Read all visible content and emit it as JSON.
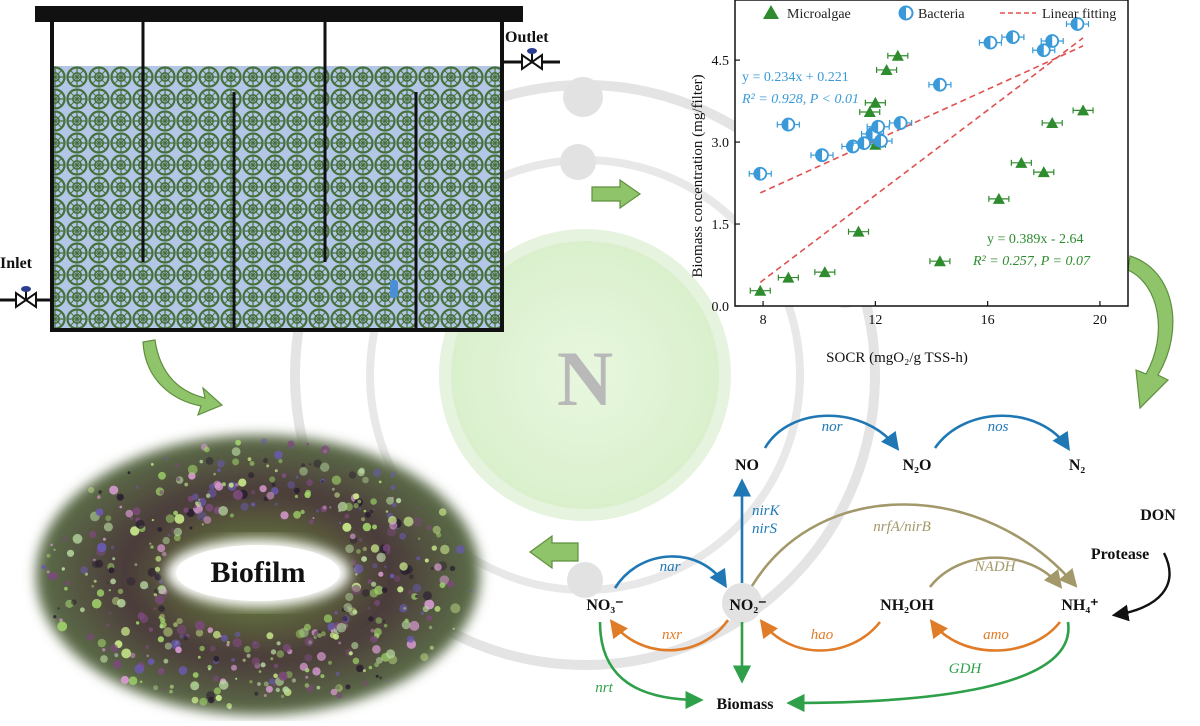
{
  "reactor": {
    "inlet_label": "Inlet",
    "outlet_label": "Outlet"
  },
  "center_label": "N",
  "biofilm_label": "Biofilm",
  "colors": {
    "blue": "#1f78b4",
    "orange": "#e07b28",
    "green": "#2ea04a",
    "khaki": "#a3986a",
    "microalgae": "#2e8b2e",
    "bacteria": "#3a9ad9",
    "fit": "#e05050",
    "arrow_fill": "#8fc46b"
  },
  "chart_data": {
    "type": "scatter",
    "xlabel": "SOCR (mgO₂/g TSS-h)",
    "ylabel": "Biomass concentration (mg/filter)",
    "xlim": [
      7,
      21
    ],
    "ylim": [
      0,
      5.6
    ],
    "xticks": [
      "8",
      "12",
      "16",
      "20"
    ],
    "yticks": [
      "0.0",
      "1.5",
      "3.0",
      "4.5"
    ],
    "grid": false,
    "legend_position": "top",
    "series": [
      {
        "name": "Microalgae",
        "marker": "triangle",
        "color": "#2e8b2e",
        "points": [
          [
            7.9,
            0.28
          ],
          [
            8.9,
            0.52
          ],
          [
            10.2,
            0.62
          ],
          [
            11.4,
            1.36
          ],
          [
            14.3,
            0.82
          ],
          [
            16.4,
            1.96
          ],
          [
            17.2,
            2.62
          ],
          [
            18.0,
            2.45
          ],
          [
            18.3,
            3.35
          ],
          [
            19.4,
            3.58
          ],
          [
            12.0,
            2.95
          ],
          [
            11.8,
            3.55
          ],
          [
            12.0,
            3.72
          ],
          [
            12.4,
            4.32
          ],
          [
            12.8,
            4.58
          ]
        ]
      },
      {
        "name": "Bacteria",
        "marker": "half-circle",
        "color": "#3a9ad9",
        "points": [
          [
            7.9,
            2.42
          ],
          [
            8.9,
            3.32
          ],
          [
            10.1,
            2.76
          ],
          [
            11.2,
            2.92
          ],
          [
            11.6,
            2.98
          ],
          [
            11.9,
            3.15
          ],
          [
            12.1,
            3.28
          ],
          [
            12.2,
            3.02
          ],
          [
            12.9,
            3.35
          ],
          [
            14.3,
            4.05
          ],
          [
            16.1,
            4.82
          ],
          [
            16.9,
            4.92
          ],
          [
            18.0,
            4.68
          ],
          [
            18.3,
            4.85
          ],
          [
            19.2,
            5.16
          ]
        ]
      },
      {
        "name": "Linear fitting",
        "type": "line",
        "style": "dashed",
        "color": "#e05050",
        "lines": [
          {
            "slope": 0.234,
            "intercept": 0.221,
            "x": [
              7.9,
              19.4
            ]
          },
          {
            "slope": 0.389,
            "intercept": -2.64,
            "x": [
              7.9,
              19.4
            ]
          }
        ]
      }
    ],
    "annotations": {
      "bacteria_eq": "y = 0.234x + 0.221",
      "bacteria_r2": "R² = 0.928, P < 0.01",
      "microalgae_eq": "y = 0.389x - 2.64",
      "microalgae_r2": "R² = 0.257, P = 0.07"
    }
  },
  "pathway": {
    "species": {
      "no": "NO",
      "n2o": "N₂O",
      "n2": "N₂",
      "no3": "NO₃⁻",
      "no2": "NO₂⁻",
      "nh2oh": "NH₂OH",
      "nh4": "NH₄⁺",
      "don": "DON",
      "biomass": "Biomass"
    },
    "enzymes": {
      "nor": "nor",
      "nos": "nos",
      "nirk": "nirK",
      "nirs": "nirS",
      "nrfa": "nrfA/nirB",
      "nar": "nar",
      "nadh": "NADH",
      "protease": "Protease",
      "nxr": "nxr",
      "hao": "hao",
      "amo": "amo",
      "gdh": "GDH",
      "nrt": "nrt"
    }
  }
}
